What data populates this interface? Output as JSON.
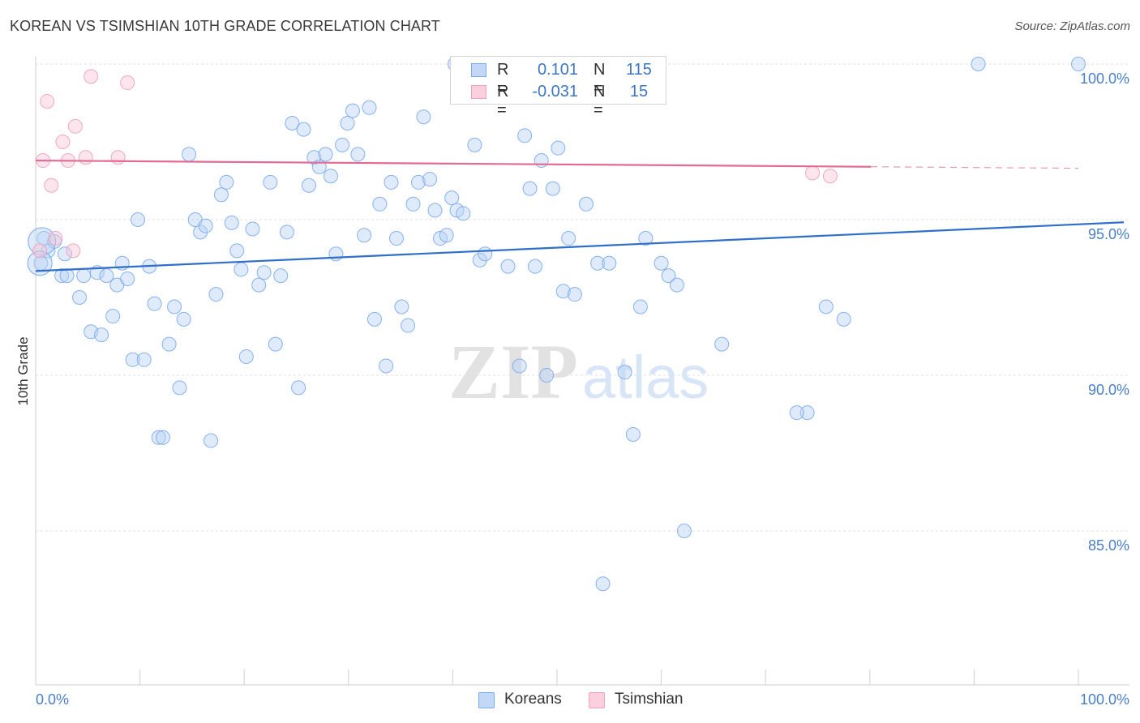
{
  "header": {
    "title": "KOREAN VS TSIMSHIAN 10TH GRADE CORRELATION CHART",
    "source": "Source: ZipAtlas.com"
  },
  "watermark": {
    "zip": "ZIP",
    "atlas": "atlas"
  },
  "legend": {
    "rows": [
      {
        "r_label": "R =",
        "r_value": "0.101",
        "n_label": "N =",
        "n_value": "115",
        "color": "#7aaaf0"
      },
      {
        "r_label": "R =",
        "r_value": "-0.031",
        "n_label": "N =",
        "n_value": "15",
        "color": "#f2a0b9"
      }
    ]
  },
  "bottom_legend": {
    "koreans": "Koreans",
    "tsimshian": "Tsimshian"
  },
  "chart_data": {
    "type": "scatter",
    "title": "KOREAN VS TSIMSHIAN 10TH GRADE CORRELATION CHART",
    "xlabel": "",
    "ylabel": "10th Grade",
    "xlim": [
      0,
      100
    ],
    "ylim": [
      80.5,
      100.8
    ],
    "x_ticks": [
      0,
      10,
      20,
      30,
      40,
      50,
      60,
      70,
      80,
      90,
      100
    ],
    "x_tick_labels": {
      "left": "0.0%",
      "right": "100.0%"
    },
    "y_ticks": [
      {
        "value": 100,
        "label": "100.0%"
      },
      {
        "value": 95,
        "label": "95.0%"
      },
      {
        "value": 90,
        "label": "90.0%"
      },
      {
        "value": 85,
        "label": "85.0%"
      }
    ],
    "grid": true,
    "series": [
      {
        "name": "Koreans",
        "color": "#7aaaf0",
        "line_color": "#2f6fcb",
        "trend": {
          "x0": 0,
          "y0": 93.35,
          "x1": 100,
          "y1": 94.85
        },
        "points": [
          [
            0.5,
            93.6
          ],
          [
            0.8,
            94.4
          ],
          [
            1.2,
            94.0
          ],
          [
            1.8,
            94.3
          ],
          [
            2.5,
            93.2
          ],
          [
            2.8,
            93.9
          ],
          [
            3.0,
            93.2
          ],
          [
            4.2,
            92.5
          ],
          [
            4.6,
            93.2
          ],
          [
            5.3,
            91.4
          ],
          [
            5.9,
            93.3
          ],
          [
            6.3,
            91.3
          ],
          [
            6.8,
            93.2
          ],
          [
            7.4,
            91.9
          ],
          [
            7.8,
            92.9
          ],
          [
            8.3,
            93.6
          ],
          [
            8.8,
            93.1
          ],
          [
            9.3,
            90.5
          ],
          [
            9.8,
            95.0
          ],
          [
            10.4,
            90.5
          ],
          [
            10.9,
            93.5
          ],
          [
            11.4,
            92.3
          ],
          [
            11.8,
            88.0
          ],
          [
            12.2,
            88.0
          ],
          [
            12.8,
            91.0
          ],
          [
            13.3,
            92.2
          ],
          [
            13.8,
            89.6
          ],
          [
            14.2,
            91.8
          ],
          [
            14.7,
            97.1
          ],
          [
            15.3,
            95.0
          ],
          [
            15.8,
            94.6
          ],
          [
            16.3,
            94.8
          ],
          [
            16.8,
            87.9
          ],
          [
            17.3,
            92.6
          ],
          [
            17.8,
            95.8
          ],
          [
            18.3,
            96.2
          ],
          [
            18.8,
            94.9
          ],
          [
            19.3,
            94.0
          ],
          [
            19.7,
            93.4
          ],
          [
            20.2,
            90.6
          ],
          [
            20.8,
            94.7
          ],
          [
            21.4,
            92.9
          ],
          [
            21.9,
            93.3
          ],
          [
            22.5,
            96.2
          ],
          [
            23.0,
            91.0
          ],
          [
            23.5,
            93.2
          ],
          [
            24.1,
            94.6
          ],
          [
            24.6,
            98.1
          ],
          [
            25.2,
            89.6
          ],
          [
            25.7,
            97.9
          ],
          [
            26.2,
            96.1
          ],
          [
            26.7,
            97.0
          ],
          [
            27.2,
            96.7
          ],
          [
            27.8,
            97.1
          ],
          [
            28.3,
            96.4
          ],
          [
            28.8,
            93.9
          ],
          [
            29.4,
            97.4
          ],
          [
            29.9,
            98.1
          ],
          [
            30.4,
            98.5
          ],
          [
            30.9,
            97.1
          ],
          [
            31.5,
            94.5
          ],
          [
            32.0,
            98.6
          ],
          [
            32.5,
            91.8
          ],
          [
            33.0,
            95.5
          ],
          [
            33.6,
            90.3
          ],
          [
            34.1,
            96.2
          ],
          [
            34.6,
            94.4
          ],
          [
            35.1,
            92.2
          ],
          [
            35.7,
            91.6
          ],
          [
            36.2,
            95.5
          ],
          [
            36.7,
            96.2
          ],
          [
            37.2,
            98.3
          ],
          [
            37.8,
            96.3
          ],
          [
            38.3,
            95.3
          ],
          [
            38.8,
            94.4
          ],
          [
            39.4,
            94.5
          ],
          [
            39.9,
            95.7
          ],
          [
            40.4,
            95.3
          ],
          [
            41.0,
            95.2
          ],
          [
            42.1,
            97.4
          ],
          [
            42.6,
            93.7
          ],
          [
            43.1,
            93.9
          ],
          [
            45.3,
            93.5
          ],
          [
            46.4,
            90.3
          ],
          [
            46.9,
            97.7
          ],
          [
            47.4,
            96.0
          ],
          [
            47.9,
            93.5
          ],
          [
            48.5,
            96.9
          ],
          [
            49.0,
            90.0
          ],
          [
            49.6,
            96.0
          ],
          [
            50.1,
            97.3
          ],
          [
            50.6,
            92.7
          ],
          [
            51.1,
            94.4
          ],
          [
            51.7,
            92.6
          ],
          [
            52.8,
            95.5
          ],
          [
            53.9,
            93.6
          ],
          [
            54.4,
            83.3
          ],
          [
            55.0,
            93.6
          ],
          [
            55.7,
            99.1
          ],
          [
            56.5,
            90.1
          ],
          [
            57.3,
            88.1
          ],
          [
            58.0,
            92.2
          ],
          [
            58.5,
            94.4
          ],
          [
            60.0,
            93.6
          ],
          [
            60.7,
            93.2
          ],
          [
            61.5,
            92.9
          ],
          [
            62.2,
            85.0
          ],
          [
            65.8,
            91.0
          ],
          [
            74.0,
            88.8
          ],
          [
            73.0,
            88.8
          ],
          [
            75.8,
            92.2
          ],
          [
            77.5,
            91.8
          ],
          [
            90.4,
            100.0
          ],
          [
            100.0,
            100.0
          ],
          [
            40.2,
            100.0
          ]
        ]
      },
      {
        "name": "Tsimshian",
        "color": "#f2a0b9",
        "line_color": "#e46a93",
        "trend": {
          "x0": 0,
          "y0": 96.9,
          "x1": 80,
          "y1": 96.7,
          "dash_to": 100,
          "dash_y": 96.65
        },
        "points": [
          [
            0.4,
            94.0
          ],
          [
            0.7,
            96.9
          ],
          [
            1.1,
            98.8
          ],
          [
            1.5,
            96.1
          ],
          [
            1.9,
            94.4
          ],
          [
            2.6,
            97.5
          ],
          [
            3.1,
            96.9
          ],
          [
            3.6,
            94.0
          ],
          [
            3.8,
            98.0
          ],
          [
            4.8,
            97.0
          ],
          [
            5.3,
            99.6
          ],
          [
            7.9,
            97.0
          ],
          [
            8.8,
            99.4
          ],
          [
            74.5,
            96.5
          ],
          [
            76.2,
            96.4
          ]
        ]
      }
    ]
  }
}
